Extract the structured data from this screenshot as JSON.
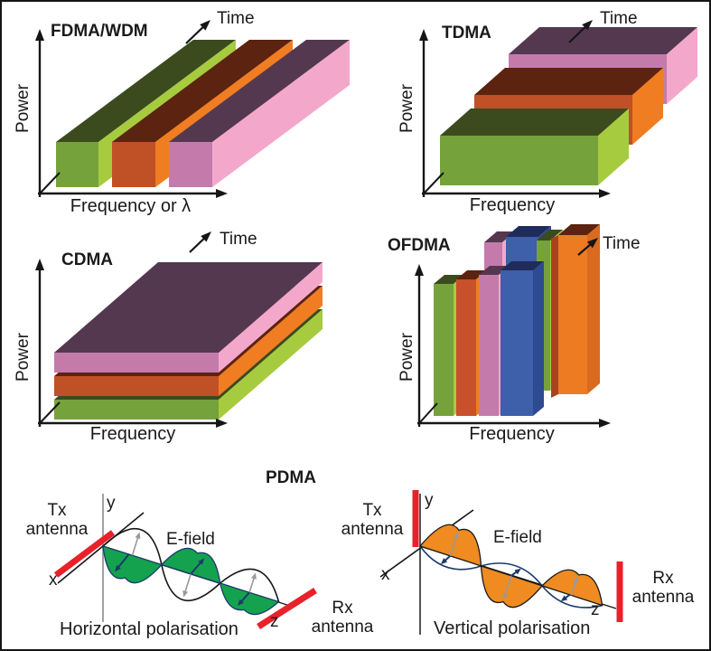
{
  "figure": {
    "description": "Multiple access / multiplexing techniques diagram"
  },
  "panels": {
    "fdma": {
      "title": "FDMA/WDM",
      "power": "Power",
      "freq": "Frequency or λ",
      "time": "Time"
    },
    "tdma": {
      "title": "TDMA",
      "power": "Power",
      "freq": "Frequency",
      "time": "Time"
    },
    "cdma": {
      "title": "CDMA",
      "power": "Power",
      "freq": "Frequency",
      "time": "Time"
    },
    "ofdma": {
      "title": "OFDMA",
      "power": "Power",
      "freq": "Frequency",
      "time": "Time"
    },
    "pdma": {
      "title": "PDMA",
      "h": {
        "tx": "Tx antenna",
        "rx": "Rx antenna",
        "efield": "E-field",
        "x": "x",
        "y": "y",
        "z": "z",
        "caption": "Horizontal polarisation"
      },
      "v": {
        "tx": "Tx antenna",
        "rx": "Rx antenna",
        "efield": "E-field",
        "x": "x",
        "y": "y",
        "z": "z",
        "caption": "Vertical polarisation"
      }
    }
  },
  "colors": {
    "bar_green": {
      "front": "#76A23C",
      "top": "#3B4B1E",
      "side": "#A6CB3F"
    },
    "bar_orange": {
      "front": "#C05026",
      "top": "#5B2310",
      "side": "#F07D21"
    },
    "bar_pink": {
      "front": "#C47BAC",
      "top": "#54384F",
      "side": "#F3A8CB"
    },
    "bar_blue": {
      "front": "#3E5FA9",
      "top": "#1F2B5B",
      "side": "#2E4A91"
    },
    "bar_orange_bright": {
      "front": "#ED7B22",
      "top": "#5B2310",
      "side": "#D96A1E",
      "shadow": "#A8431D"
    },
    "axis": "#161616",
    "axis_gray": "#8a8a8a",
    "antenna_red": "#E8212B",
    "wave_green": "#14A24F",
    "wave_orange": "#EF8B21",
    "wave_blue": "#1B3A6B",
    "wave_gray": "#999999"
  }
}
